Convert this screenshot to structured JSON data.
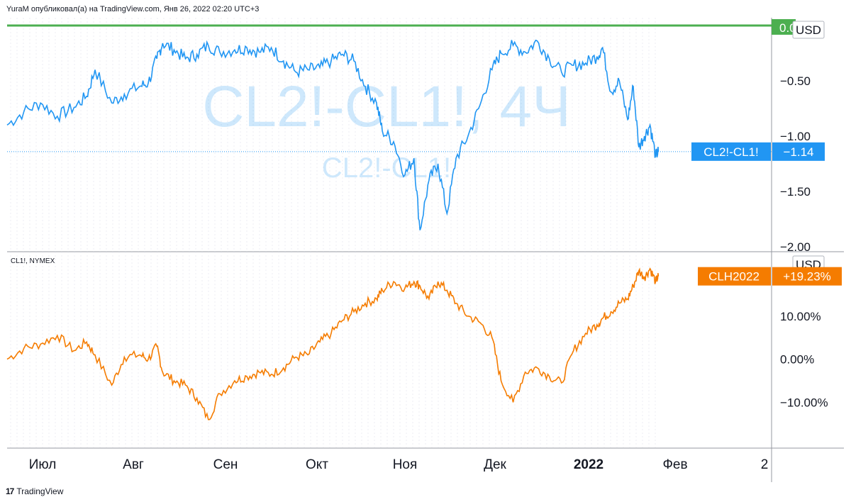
{
  "header": {
    "published_by": "YuraM опубликовал(а) на TradingView.com, Янв 26, 2022 02:20 UTC+3"
  },
  "watermark": {
    "main": "CL2!-CL1!, 4Ч",
    "sub": "CL2!-CL1!"
  },
  "footer": {
    "brand": "TradingView"
  },
  "colors": {
    "spread_line": "#2196f3",
    "clh_line": "#f57c00",
    "top_line": "#4caf50",
    "grid": "#e0e3eb",
    "text": "#131722"
  },
  "chart_data": [
    {
      "type": "line",
      "pane": "top",
      "symbol": "CL2!-CL1!",
      "currency": "USD",
      "y_ticks": [
        "−0.50",
        "−1.00",
        "−1.50",
        "−2.00"
      ],
      "top_value_label": "0.00",
      "ylim": [
        -2.0,
        0.0
      ],
      "last_value": -1.14,
      "last_value_label": "−1.14",
      "series": [
        {
          "name": "CL2!-CL1!",
          "points": [
            [
              "Июл 01",
              -0.9
            ],
            [
              "Июл 05",
              -0.78
            ],
            [
              "Июл 09",
              -0.7
            ],
            [
              "Июл 13",
              -0.82
            ],
            [
              "Июл 17",
              -0.74
            ],
            [
              "Июл 20",
              -0.64
            ],
            [
              "Июл 22",
              -0.4
            ],
            [
              "Июл 26",
              -0.7
            ],
            [
              "Июл 29",
              -0.62
            ],
            [
              "Авг 02",
              -0.55
            ],
            [
              "Авг 05",
              -0.52
            ],
            [
              "Авг 08",
              -0.3
            ],
            [
              "Авг 10",
              -0.16
            ],
            [
              "Авг 14",
              -0.22
            ],
            [
              "Авг 18",
              -0.3
            ],
            [
              "Авг 22",
              -0.26
            ],
            [
              "Авг 26",
              -0.18
            ],
            [
              "Авг 30",
              -0.24
            ],
            [
              "Сен 04",
              -0.22
            ],
            [
              "Сен 08",
              -0.2
            ],
            [
              "Сен 12",
              -0.24
            ],
            [
              "Сен 16",
              -0.2
            ],
            [
              "Сен 20",
              -0.32
            ],
            [
              "Сен 24",
              -0.42
            ],
            [
              "Сен 28",
              -0.4
            ],
            [
              "Окт 02",
              -0.38
            ],
            [
              "Окт 06",
              -0.32
            ],
            [
              "Окт 10",
              -0.26
            ],
            [
              "Окт 14",
              -0.32
            ],
            [
              "Окт 18",
              -0.55
            ],
            [
              "Окт 22",
              -0.7
            ],
            [
              "Окт 24",
              -0.95
            ],
            [
              "Окт 28",
              -1.05
            ],
            [
              "Ноя 01",
              -1.35
            ],
            [
              "Ноя 04",
              -1.2
            ],
            [
              "Ноя 06",
              -1.85
            ],
            [
              "Ноя 09",
              -1.4
            ],
            [
              "Ноя 12",
              -1.25
            ],
            [
              "Ноя 15",
              -1.7
            ],
            [
              "Ноя 18",
              -1.2
            ],
            [
              "Ноя 22",
              -1.0
            ],
            [
              "Ноя 26",
              -0.72
            ],
            [
              "Ноя 30",
              -0.4
            ],
            [
              "Дек 03",
              -0.25
            ],
            [
              "Дек 07",
              -0.18
            ],
            [
              "Дек 11",
              -0.24
            ],
            [
              "Дек 15",
              -0.14
            ],
            [
              "Дек 19",
              -0.3
            ],
            [
              "Дек 23",
              -0.42
            ],
            [
              "Дек 27",
              -0.36
            ],
            [
              "Дек 31",
              -0.34
            ],
            [
              "Янв 04",
              -0.28
            ],
            [
              "Янв 06",
              -0.2
            ],
            [
              "Янв 09",
              -0.6
            ],
            [
              "Янв 12",
              -0.5
            ],
            [
              "Янв 15",
              -0.85
            ],
            [
              "Янв 17",
              -0.55
            ],
            [
              "Янв 19",
              -1.1
            ],
            [
              "Янв 21",
              -1.0
            ],
            [
              "Янв 23",
              -0.9
            ],
            [
              "Янв 25",
              -1.18
            ],
            [
              "Янв 26",
              -1.14
            ]
          ]
        }
      ]
    },
    {
      "type": "line",
      "pane": "bottom",
      "symbol": "CL1!, NYMEX",
      "series_label": "CLH2022",
      "currency": "USD",
      "y_ticks": [
        "10.00%",
        "0.00%",
        "−10.00%"
      ],
      "ylim": [
        -17,
        20
      ],
      "last_value": 19.23,
      "last_value_label": "+19.23%",
      "series": [
        {
          "name": "CLH2022",
          "points": [
            [
              "Июл 01",
              0.0
            ],
            [
              "Июл 05",
              2.5
            ],
            [
              "Июл 09",
              3.5
            ],
            [
              "Июл 13",
              5.5
            ],
            [
              "Июл 17",
              2.0
            ],
            [
              "Июл 20",
              4.0
            ],
            [
              "Июл 22",
              1.0
            ],
            [
              "Июл 26",
              -6.0
            ],
            [
              "Июл 29",
              0.5
            ],
            [
              "Авг 02",
              1.0
            ],
            [
              "Авг 05",
              0.0
            ],
            [
              "Авг 08",
              3.0
            ],
            [
              "Авг 10",
              -3.0
            ],
            [
              "Авг 14",
              -5.0
            ],
            [
              "Авг 18",
              -6.0
            ],
            [
              "Авг 22",
              -9.0
            ],
            [
              "Авг 26",
              -14.0
            ],
            [
              "Авг 30",
              -8.0
            ],
            [
              "Сен 04",
              -5.0
            ],
            [
              "Сен 08",
              -4.0
            ],
            [
              "Сен 12",
              -3.0
            ],
            [
              "Сен 16",
              -3.5
            ],
            [
              "Сен 20",
              -2.0
            ],
            [
              "Сен 24",
              0.5
            ],
            [
              "Сен 28",
              1.0
            ],
            [
              "Окт 02",
              4.0
            ],
            [
              "Окт 06",
              6.0
            ],
            [
              "Окт 10",
              9.0
            ],
            [
              "Окт 14",
              11.0
            ],
            [
              "Окт 18",
              13.0
            ],
            [
              "Окт 22",
              14.0
            ],
            [
              "Окт 24",
              16.0
            ],
            [
              "Окт 28",
              18.0
            ],
            [
              "Ноя 01",
              16.5
            ],
            [
              "Ноя 04",
              18.0
            ],
            [
              "Ноя 06",
              17.0
            ],
            [
              "Ноя 09",
              14.0
            ],
            [
              "Ноя 12",
              18.0
            ],
            [
              "Ноя 15",
              16.0
            ],
            [
              "Ноя 18",
              13.0
            ],
            [
              "Ноя 22",
              10.0
            ],
            [
              "Ноя 26",
              8.5
            ],
            [
              "Ноя 30",
              5.0
            ],
            [
              "Дек 03",
              -5.0
            ],
            [
              "Дек 07",
              -10.0
            ],
            [
              "Дек 11",
              -3.0
            ],
            [
              "Дек 15",
              -2.0
            ],
            [
              "Дек 19",
              -4.0
            ],
            [
              "Дек 23",
              -5.5
            ],
            [
              "Дек 27",
              2.0
            ],
            [
              "Дек 31",
              6.0
            ],
            [
              "Янв 04",
              8.0
            ],
            [
              "Янв 06",
              9.5
            ],
            [
              "Янв 09",
              11.0
            ],
            [
              "Янв 12",
              13.0
            ],
            [
              "Янв 15",
              14.0
            ],
            [
              "Янв 17",
              17.0
            ],
            [
              "Янв 19",
              20.5
            ],
            [
              "Янв 21",
              19.0
            ],
            [
              "Янв 23",
              21.0
            ],
            [
              "Янв 25",
              18.0
            ],
            [
              "Янв 26",
              19.23
            ]
          ]
        }
      ]
    }
  ],
  "x_axis": {
    "labels": [
      "Июл",
      "Авг",
      "Сен",
      "Окт",
      "Ноя",
      "Дек",
      "2022",
      "Фев",
      "2"
    ],
    "bold_label": "2022"
  }
}
